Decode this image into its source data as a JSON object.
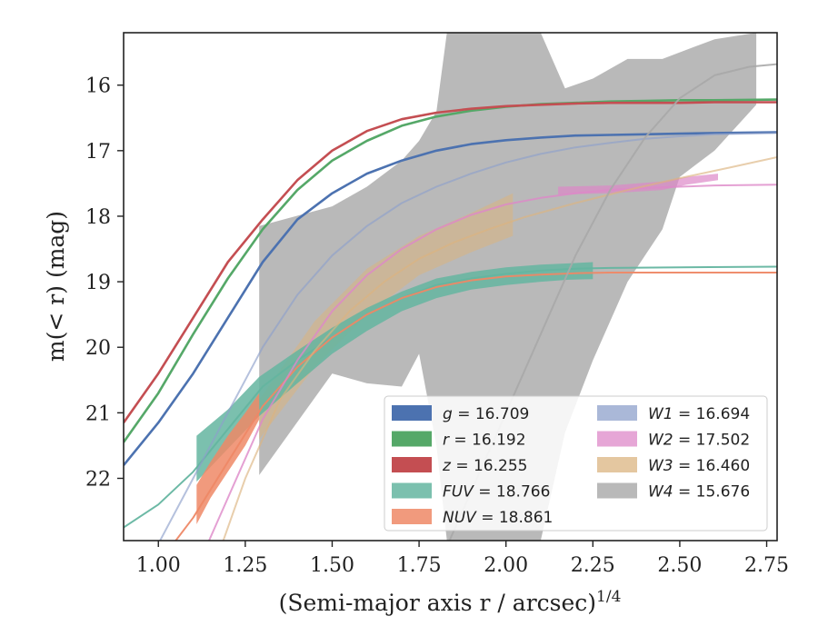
{
  "chart_data": {
    "type": "line",
    "xlabel": "(Semi-major axis r / arcsec)",
    "xlabel_sup": "1/4",
    "ylabel": "m(< r) (mag)",
    "xlim": [
      0.9,
      2.78
    ],
    "ylim": [
      22.95,
      15.2
    ],
    "y_inverted": true,
    "xticks": [
      1.0,
      1.25,
      1.5,
      1.75,
      2.0,
      2.25,
      2.5,
      2.75
    ],
    "xtick_labels": [
      "1.00",
      "1.25",
      "1.50",
      "1.75",
      "2.00",
      "2.25",
      "2.50",
      "2.75"
    ],
    "yticks": [
      16,
      17,
      18,
      19,
      20,
      21,
      22
    ],
    "ytick_labels": [
      "16",
      "17",
      "18",
      "19",
      "20",
      "21",
      "22"
    ],
    "grid": false,
    "legend_position": "lower-right",
    "series": [
      {
        "name": "g",
        "value": "16.709",
        "color": "#4c72b0",
        "alpha": 1,
        "model_curve": {
          "x": [
            0.9,
            1.0,
            1.1,
            1.2,
            1.3,
            1.4,
            1.5,
            1.6,
            1.7,
            1.8,
            1.9,
            2.0,
            2.1,
            2.2,
            2.3,
            2.4,
            2.5,
            2.6,
            2.78
          ],
          "y": [
            21.8,
            21.15,
            20.4,
            19.55,
            18.7,
            18.05,
            17.65,
            17.35,
            17.15,
            17.0,
            16.9,
            16.84,
            16.8,
            16.77,
            16.76,
            16.75,
            16.74,
            16.73,
            16.72
          ]
        }
      },
      {
        "name": "r",
        "value": "16.192",
        "color": "#55a868",
        "alpha": 1,
        "model_curve": {
          "x": [
            0.9,
            1.0,
            1.1,
            1.2,
            1.3,
            1.4,
            1.5,
            1.6,
            1.7,
            1.8,
            1.9,
            2.0,
            2.1,
            2.2,
            2.3,
            2.4,
            2.5,
            2.6,
            2.78
          ],
          "y": [
            21.45,
            20.7,
            19.8,
            18.95,
            18.2,
            17.6,
            17.15,
            16.85,
            16.62,
            16.48,
            16.39,
            16.33,
            16.29,
            16.27,
            16.25,
            16.24,
            16.23,
            16.23,
            16.22
          ]
        }
      },
      {
        "name": "z",
        "value": "16.255",
        "color": "#c44e52",
        "alpha": 1,
        "model_curve": {
          "x": [
            0.9,
            1.0,
            1.1,
            1.2,
            1.3,
            1.4,
            1.5,
            1.6,
            1.7,
            1.8,
            1.9,
            2.0,
            2.1,
            2.2,
            2.3,
            2.4,
            2.5,
            2.6,
            2.78
          ],
          "y": [
            21.15,
            20.4,
            19.55,
            18.7,
            18.05,
            17.45,
            17.0,
            16.7,
            16.52,
            16.42,
            16.36,
            16.32,
            16.3,
            16.28,
            16.27,
            16.27,
            16.27,
            16.26,
            16.26
          ]
        }
      },
      {
        "name": "FUV",
        "value": "18.766",
        "color": "#64b5a0",
        "alpha": 0.85,
        "model_curve": {
          "x": [
            0.9,
            1.0,
            1.1,
            1.2,
            1.3,
            1.4,
            1.5,
            1.6,
            1.7,
            1.8,
            1.9,
            2.0,
            2.1,
            2.2,
            2.3,
            2.5,
            2.78
          ],
          "y": [
            22.75,
            22.4,
            21.9,
            21.25,
            20.6,
            20.2,
            19.85,
            19.5,
            19.25,
            19.05,
            18.95,
            18.88,
            18.83,
            18.8,
            18.79,
            18.78,
            18.77
          ]
        },
        "band": {
          "x": [
            1.11,
            1.2,
            1.29,
            1.4,
            1.5,
            1.6,
            1.7,
            1.8,
            1.9,
            2.0,
            2.1,
            2.18,
            2.25
          ],
          "y_low": [
            22.05,
            21.55,
            21.05,
            20.55,
            20.1,
            19.75,
            19.45,
            19.25,
            19.12,
            19.05,
            19.0,
            18.97,
            18.96
          ],
          "y_high": [
            21.35,
            20.95,
            20.45,
            20.05,
            19.7,
            19.4,
            19.15,
            18.95,
            18.85,
            18.78,
            18.74,
            18.72,
            18.7
          ]
        }
      },
      {
        "name": "NUV",
        "value": "18.861",
        "color": "#ee8866",
        "alpha": 0.85,
        "model_curve": {
          "x": [
            0.9,
            1.0,
            1.1,
            1.2,
            1.3,
            1.4,
            1.5,
            1.6,
            1.7,
            1.8,
            1.9,
            2.0,
            2.1,
            2.2,
            2.3,
            2.5,
            2.78
          ],
          "y": [
            23.8,
            23.3,
            22.6,
            21.75,
            20.9,
            20.3,
            19.85,
            19.5,
            19.25,
            19.08,
            18.98,
            18.92,
            18.89,
            18.87,
            18.86,
            18.86,
            18.86
          ]
        },
        "band": {
          "x": [
            1.11,
            1.15,
            1.2,
            1.25,
            1.29
          ],
          "y_low": [
            22.7,
            22.3,
            21.9,
            21.5,
            21.1
          ],
          "y_high": [
            22.1,
            21.75,
            21.35,
            21.0,
            20.7
          ]
        }
      },
      {
        "name": "W1",
        "value": "16.694",
        "color": "#8da0cb",
        "alpha": 0.55,
        "model_curve": {
          "x": [
            0.9,
            1.0,
            1.1,
            1.2,
            1.3,
            1.4,
            1.5,
            1.6,
            1.7,
            1.8,
            1.9,
            2.0,
            2.1,
            2.2,
            2.3,
            2.4,
            2.5,
            2.6,
            2.78
          ],
          "y": [
            24.0,
            23.0,
            22.0,
            21.0,
            20.0,
            19.2,
            18.6,
            18.15,
            17.8,
            17.55,
            17.35,
            17.18,
            17.05,
            16.95,
            16.88,
            16.82,
            16.78,
            16.75,
            16.73
          ]
        }
      },
      {
        "name": "W2",
        "value": "17.502",
        "color": "#dd88c8",
        "alpha": 0.7,
        "model_curve": {
          "x": [
            1.1,
            1.2,
            1.3,
            1.4,
            1.5,
            1.6,
            1.7,
            1.8,
            1.9,
            2.0,
            2.1,
            2.2,
            2.3,
            2.4,
            2.5,
            2.6,
            2.78
          ],
          "y": [
            23.5,
            22.3,
            21.1,
            20.2,
            19.45,
            18.9,
            18.5,
            18.2,
            17.98,
            17.82,
            17.72,
            17.65,
            17.6,
            17.57,
            17.55,
            17.53,
            17.52
          ]
        },
        "band": {
          "x": [
            2.15,
            2.3,
            2.45,
            2.52,
            2.61
          ],
          "y_low": [
            17.67,
            17.65,
            17.6,
            17.52,
            17.45
          ],
          "y_high": [
            17.55,
            17.53,
            17.47,
            17.4,
            17.35
          ]
        }
      },
      {
        "name": "W3",
        "value": "16.460",
        "color": "#dbb480",
        "alpha": 0.55,
        "model_curve": {
          "x": [
            1.15,
            1.25,
            1.35,
            1.45,
            1.55,
            1.65,
            1.75,
            1.85,
            1.95,
            2.05,
            2.2,
            2.35,
            2.5,
            2.65,
            2.78
          ],
          "y": [
            23.5,
            22.0,
            20.8,
            20.05,
            19.45,
            19.0,
            18.65,
            18.4,
            18.2,
            18.02,
            17.8,
            17.6,
            17.42,
            17.25,
            17.1
          ]
        },
        "band": {
          "x": [
            1.29,
            1.45,
            1.6,
            1.75,
            1.9,
            2.02
          ],
          "y_low": [
            21.4,
            20.3,
            19.5,
            18.9,
            18.55,
            18.3
          ],
          "y_high": [
            20.8,
            19.6,
            18.8,
            18.3,
            17.95,
            17.65
          ]
        }
      },
      {
        "name": "W4",
        "value": "15.676",
        "color": "#a8a8a8",
        "alpha": 0.8,
        "model_curve": {
          "x": [
            1.7,
            1.8,
            1.9,
            2.0,
            2.1,
            2.2,
            2.3,
            2.4,
            2.5,
            2.6,
            2.7,
            2.78
          ],
          "y": [
            24.5,
            23.4,
            22.2,
            21.0,
            19.8,
            18.6,
            17.6,
            16.8,
            16.2,
            15.85,
            15.72,
            15.68
          ]
        },
        "band": {
          "x": [
            1.29,
            1.5,
            1.6,
            1.7,
            1.75,
            1.8,
            1.83,
            1.9,
            2.0,
            2.1,
            2.17,
            2.25,
            2.35,
            2.45,
            2.5,
            2.6,
            2.72
          ],
          "y_low": [
            21.95,
            20.4,
            20.55,
            20.6,
            20.1,
            21.5,
            22.95,
            22.95,
            22.95,
            22.95,
            21.3,
            20.2,
            19.0,
            18.2,
            17.4,
            17.0,
            16.3
          ],
          "y_high": [
            18.15,
            17.85,
            17.55,
            17.15,
            16.85,
            16.4,
            15.2,
            15.2,
            15.2,
            15.2,
            16.05,
            15.9,
            15.6,
            15.6,
            15.5,
            15.3,
            15.2
          ]
        }
      }
    ]
  }
}
